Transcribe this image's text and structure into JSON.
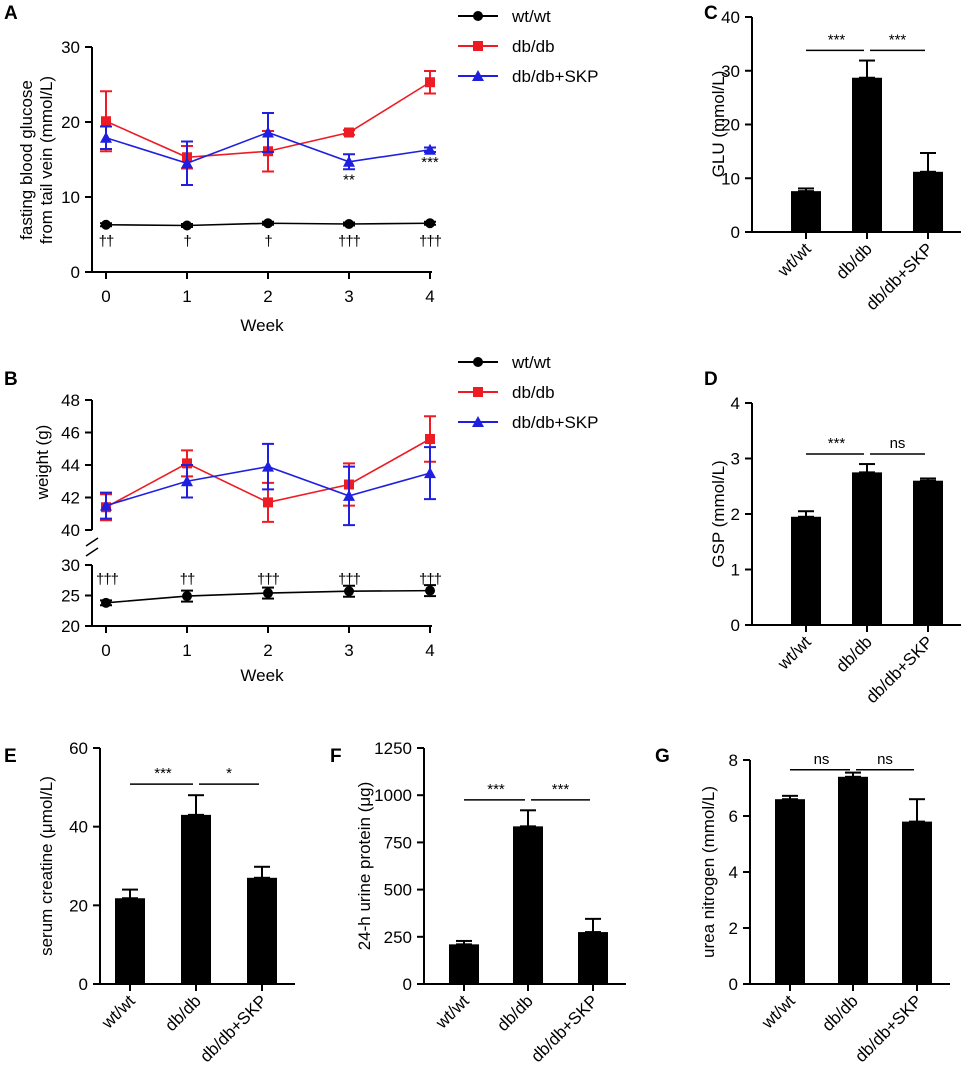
{
  "colors": {
    "wt": "#000000",
    "db": "#ed1c24",
    "skp": "#1f1fe0",
    "bar": "#000000"
  },
  "chart_data": [
    {
      "panel": "A",
      "type": "line",
      "xlabel": "Week",
      "ylabel": [
        "fasting blood glucose",
        "from tail vein (mmol/L)"
      ],
      "x": [
        0,
        1,
        2,
        3,
        4
      ],
      "xticks": [
        "0",
        "1",
        "2",
        "3",
        "4"
      ],
      "ylim": [
        0,
        30
      ],
      "yticks": [
        "0",
        "10",
        "20",
        "30"
      ],
      "legend": [
        "wt/wt",
        "db/db",
        "db/db+SKP"
      ],
      "series": [
        {
          "name": "wt/wt",
          "marker": "circle",
          "values": [
            6.3,
            6.2,
            6.5,
            6.4,
            6.5
          ],
          "errors": [
            0.2,
            0.2,
            0.2,
            0.2,
            0.2
          ]
        },
        {
          "name": "db/db",
          "marker": "square",
          "values": [
            20.1,
            15.3,
            16.1,
            18.6,
            25.3
          ],
          "errors": [
            4.0,
            1.5,
            2.7,
            0.3,
            1.5
          ]
        },
        {
          "name": "db/db+SKP",
          "marker": "triangle",
          "values": [
            17.9,
            14.5,
            18.6,
            14.7,
            16.3
          ],
          "errors": [
            1.5,
            2.9,
            2.6,
            1.0,
            0.3
          ]
        }
      ],
      "annotations": [
        {
          "x": 3,
          "y": 11.7,
          "text": "**"
        },
        {
          "x": 4,
          "y": 14.0,
          "text": "***"
        }
      ],
      "daggers": [
        "††",
        "†",
        "†",
        "†††",
        "†††"
      ],
      "dagger_y": 3.5
    },
    {
      "panel": "B",
      "type": "line",
      "xlabel": "Week",
      "ylabel": [
        "weight (g)"
      ],
      "x": [
        0,
        1,
        2,
        3,
        4
      ],
      "xticks": [
        "0",
        "1",
        "2",
        "3",
        "4"
      ],
      "y_break": {
        "lower": [
          20,
          30
        ],
        "upper": [
          40,
          48
        ]
      },
      "yticks": [
        "20",
        "25",
        "30",
        "40",
        "42",
        "44",
        "46",
        "48"
      ],
      "legend": [
        "wt/wt",
        "db/db",
        "db/db+SKP"
      ],
      "series": [
        {
          "name": "wt/wt",
          "marker": "circle",
          "values": [
            23.8,
            24.9,
            25.4,
            25.7,
            25.8
          ],
          "errors": [
            0.4,
            0.9,
            0.9,
            0.9,
            0.9
          ]
        },
        {
          "name": "db/db",
          "marker": "square",
          "values": [
            41.4,
            44.1,
            41.7,
            42.8,
            45.6
          ],
          "errors": [
            0.8,
            0.8,
            1.2,
            1.3,
            1.4
          ]
        },
        {
          "name": "db/db+SKP",
          "marker": "triangle",
          "values": [
            41.5,
            43.0,
            43.9,
            42.1,
            43.5
          ],
          "errors": [
            0.8,
            1.0,
            1.4,
            1.8,
            1.6
          ]
        }
      ],
      "daggers": [
        "†††",
        "††",
        "†††",
        "†††",
        "†††"
      ],
      "dagger_y": 28.6
    },
    {
      "panel": "C",
      "type": "bar",
      "categories": [
        "wt/wt",
        "db/db",
        "db/db+SKP"
      ],
      "values": [
        7.6,
        28.7,
        11.2
      ],
      "errors": [
        0.5,
        3.2,
        3.5
      ],
      "ylabel": "GLU (mmol/L)",
      "ylim": [
        0,
        40
      ],
      "yticks": [
        "0",
        "10",
        "20",
        "30",
        "40"
      ],
      "comparisons": [
        {
          "from": 0,
          "to": 1,
          "y": 33.8,
          "text": "***"
        },
        {
          "from": 1,
          "to": 2,
          "y": 33.8,
          "text": "***"
        }
      ]
    },
    {
      "panel": "D",
      "type": "bar",
      "categories": [
        "wt/wt",
        "db/db",
        "db/db+SKP"
      ],
      "values": [
        1.95,
        2.75,
        2.6
      ],
      "errors": [
        0.1,
        0.15,
        0.04
      ],
      "ylabel": "GSP (mmol/L)",
      "ylim": [
        0,
        4
      ],
      "yticks": [
        "0",
        "1",
        "2",
        "3",
        "4"
      ],
      "comparisons": [
        {
          "from": 0,
          "to": 1,
          "y": 3.08,
          "text": "***"
        },
        {
          "from": 1,
          "to": 2,
          "y": 3.08,
          "text": "ns"
        }
      ]
    },
    {
      "panel": "E",
      "type": "bar",
      "categories": [
        "wt/wt",
        "db/db",
        "db/db+SKP"
      ],
      "values": [
        21.8,
        43.0,
        27.0
      ],
      "errors": [
        2.2,
        5.0,
        2.8
      ],
      "ylabel": "serum creatine (μmol/L)",
      "ylim": [
        0,
        60
      ],
      "yticks": [
        "0",
        "20",
        "40",
        "60"
      ],
      "comparisons": [
        {
          "from": 0,
          "to": 1,
          "y": 50.8,
          "text": "***"
        },
        {
          "from": 1,
          "to": 2,
          "y": 50.8,
          "text": "*"
        }
      ]
    },
    {
      "panel": "F",
      "type": "bar",
      "categories": [
        "wt/wt",
        "db/db",
        "db/db+SKP"
      ],
      "values": [
        210,
        835,
        275
      ],
      "errors": [
        18,
        85,
        70
      ],
      "ylabel": "24-h urine protein (μg)",
      "ylim": [
        0,
        1250
      ],
      "yticks": [
        "0",
        "250",
        "500",
        "750",
        "1000",
        "1250"
      ],
      "comparisons": [
        {
          "from": 0,
          "to": 1,
          "y": 975,
          "text": "***"
        },
        {
          "from": 1,
          "to": 2,
          "y": 975,
          "text": "***"
        }
      ]
    },
    {
      "panel": "G",
      "type": "bar",
      "categories": [
        "wt/wt",
        "db/db",
        "db/db+SKP"
      ],
      "values": [
        6.6,
        7.4,
        5.8
      ],
      "errors": [
        0.12,
        0.15,
        0.8
      ],
      "ylabel": "urea nitrogen (mmol/L)",
      "ylim": [
        0,
        8
      ],
      "yticks": [
        "0",
        "2",
        "4",
        "6",
        "8"
      ],
      "comparisons": [
        {
          "from": 0,
          "to": 1,
          "y": 7.65,
          "text": "ns"
        },
        {
          "from": 1,
          "to": 2,
          "y": 7.65,
          "text": "ns"
        }
      ]
    }
  ]
}
